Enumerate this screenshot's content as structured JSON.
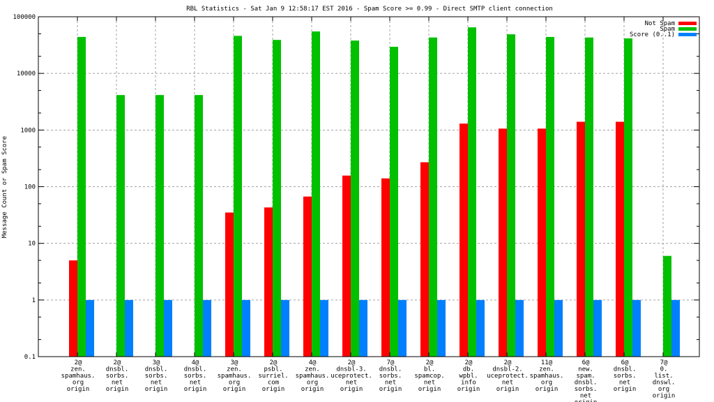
{
  "chart_data": {
    "type": "bar",
    "title": "RBL Statistics - Sat Jan  9 12:58:17 EST 2016 - Spam Score >= 0.99 - Direct SMTP client connection",
    "xlabel": "",
    "ylabel": "Message Count or Spam Score",
    "yscale": "log",
    "ylim": [
      0.1,
      100000
    ],
    "yticks": [
      "0.1",
      "1",
      "10",
      "100",
      "1000",
      "10000",
      "100000"
    ],
    "grid": true,
    "legend_position": "top-right",
    "categories": [
      [
        "2@",
        "zen.",
        "spamhaus.",
        "org",
        "origin"
      ],
      [
        "2@",
        "dnsbl.",
        "sorbs.",
        "net",
        "origin"
      ],
      [
        "3@",
        "dnsbl.",
        "sorbs.",
        "net",
        "origin"
      ],
      [
        "4@",
        "dnsbl.",
        "sorbs.",
        "net",
        "origin"
      ],
      [
        "3@",
        "zen.",
        "spamhaus.",
        "org",
        "origin"
      ],
      [
        "2@",
        "psbl.",
        "surriel.",
        "com",
        "origin"
      ],
      [
        "4@",
        "zen.",
        "spamhaus.",
        "org",
        "origin"
      ],
      [
        "2@",
        "dnsbl-3.",
        "uceprotect.",
        "net",
        "origin"
      ],
      [
        "7@",
        "dnsbl.",
        "sorbs.",
        "net",
        "origin"
      ],
      [
        "2@",
        "bl.",
        "spamcop.",
        "net",
        "origin"
      ],
      [
        "2@",
        "db.",
        "wpbl.",
        "info",
        "origin"
      ],
      [
        "2@",
        "dnsbl-2.",
        "uceprotect.",
        "net",
        "origin"
      ],
      [
        "11@",
        "zen.",
        "spamhaus.",
        "org",
        "origin"
      ],
      [
        "6@",
        "new.",
        "spam.",
        "dnsbl.",
        "sorbs.",
        "net",
        "origin"
      ],
      [
        "6@",
        "dnsbl.",
        "sorbs.",
        "net",
        "origin"
      ],
      [
        "7@",
        "0.",
        "list.",
        "dnswl.",
        "org",
        "origin"
      ]
    ],
    "series": [
      {
        "name": "Not Spam",
        "color": "#ff0000",
        "values": [
          5,
          null,
          null,
          null,
          35,
          43,
          67,
          157,
          140,
          270,
          1300,
          1060,
          1060,
          1400,
          1400,
          null
        ]
      },
      {
        "name": "Spam",
        "color": "#00c000",
        "values": [
          44000,
          4150,
          4150,
          4150,
          46000,
          39000,
          55000,
          38000,
          29500,
          43000,
          65000,
          49000,
          44000,
          43000,
          41500,
          6
        ]
      },
      {
        "name": "Score (0..1)",
        "color": "#0080ff",
        "values": [
          1,
          1,
          1,
          1,
          1,
          1,
          1,
          1,
          1,
          1,
          1,
          1,
          1,
          1,
          1,
          1
        ]
      }
    ]
  }
}
